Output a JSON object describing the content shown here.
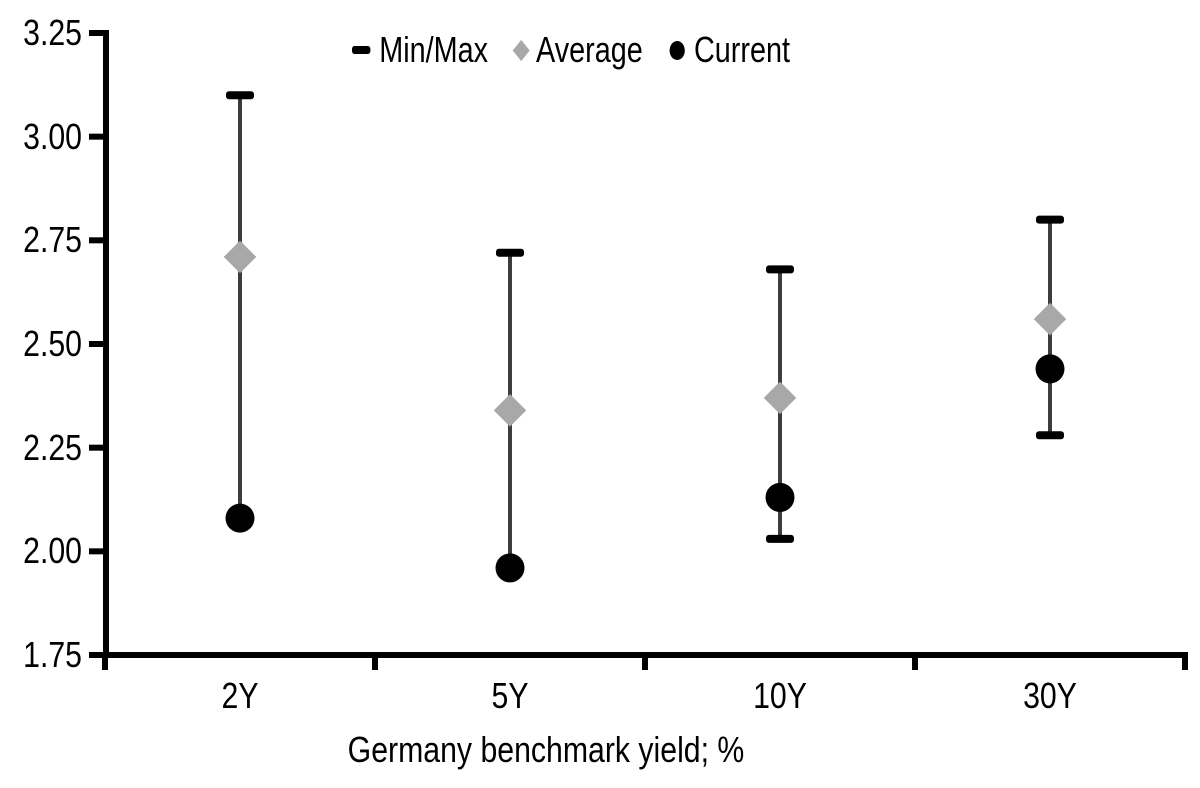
{
  "chart_data": {
    "type": "scatter",
    "subtype": "min-max-range-with-markers",
    "title": "",
    "xlabel": "Germany benchmark yield; %",
    "ylabel": "",
    "categories": [
      "2Y",
      "5Y",
      "10Y",
      "30Y"
    ],
    "series": [
      {
        "name": "Min/Max",
        "role": "range",
        "min": [
          2.08,
          1.96,
          2.03,
          2.28
        ],
        "max": [
          3.1,
          2.72,
          2.68,
          2.8
        ],
        "min_cap_visible": [
          false,
          false,
          true,
          true
        ]
      },
      {
        "name": "Average",
        "role": "marker",
        "marker": "diamond",
        "values": [
          2.71,
          2.34,
          2.37,
          2.56
        ]
      },
      {
        "name": "Current",
        "role": "marker",
        "marker": "circle",
        "values": [
          2.08,
          1.96,
          2.13,
          2.44
        ]
      }
    ],
    "ylim": [
      1.75,
      3.25
    ],
    "ytick_step": 0.25,
    "yticks": [
      1.75,
      2.0,
      2.25,
      2.5,
      2.75,
      3.0,
      3.25
    ],
    "ytick_labels": [
      "1.75",
      "2.00",
      "2.25",
      "2.50",
      "2.75",
      "3.00",
      "3.25"
    ],
    "grid": false,
    "legend_position": "top-center"
  },
  "legend": {
    "items": [
      {
        "label": "Min/Max",
        "marker": "dash-icon"
      },
      {
        "label": "Average",
        "marker": "diamond-icon"
      },
      {
        "label": "Current",
        "marker": "circle-icon"
      }
    ]
  },
  "colors": {
    "black": "#000000",
    "whisker": "#3d3d3d",
    "average_gray": "#a8a8a8",
    "background": "#ffffff"
  }
}
